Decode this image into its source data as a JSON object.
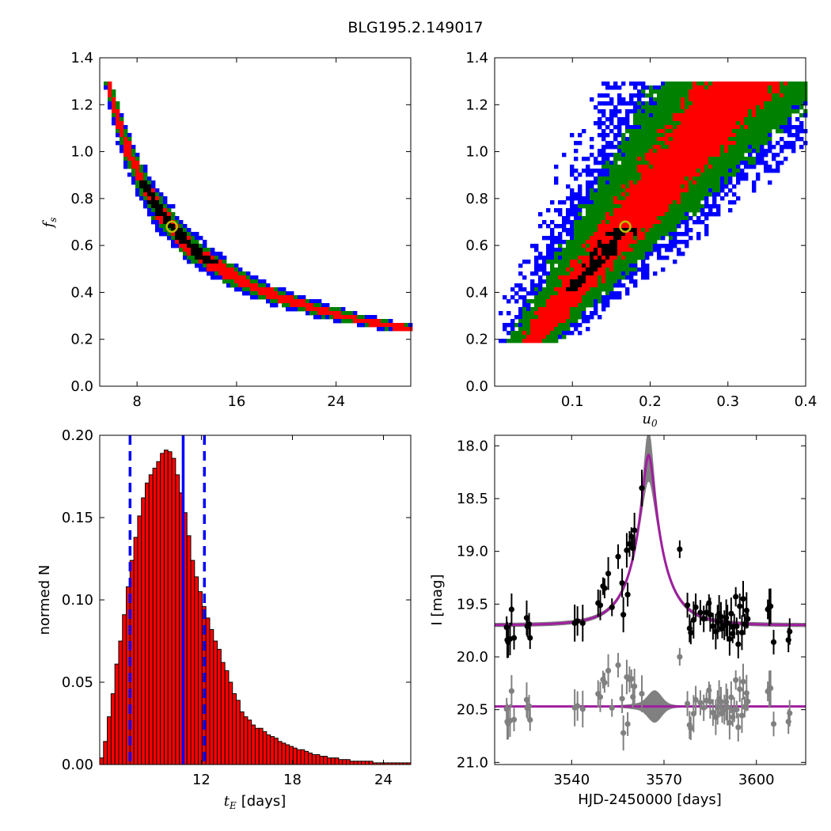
{
  "figure": {
    "title": "BLG195.2.149017"
  },
  "chart_data": [
    {
      "id": "fs_vs_tE",
      "type": "heatmap",
      "title": "",
      "xlabel": "",
      "ylabel": "f_s",
      "ylabel_main": "f",
      "ylabel_sub": "s",
      "xlim": [
        5,
        30
      ],
      "ylim": [
        0,
        1.4
      ],
      "xticks": [
        8,
        16,
        24
      ],
      "yticks": [
        0.0,
        0.2,
        0.4,
        0.6,
        0.8,
        1.0,
        1.2,
        1.4
      ],
      "ytick_labels": [
        "0.0",
        "0.2",
        "0.4",
        "0.6",
        "0.8",
        "1.0",
        "1.2",
        "1.4"
      ],
      "relation": "f_s ≈ 7.35 / t_E (curved band)",
      "confidence_colors": {
        "outer": "#0000ff",
        "middle": "#008000",
        "inner": "#ff0000",
        "core": "#000000"
      },
      "best_fit": {
        "x": 10.8,
        "y": 0.68,
        "marker_color": "#bfbf00"
      }
    },
    {
      "id": "fs_vs_u0",
      "type": "heatmap",
      "title": "",
      "xlabel": "u_0",
      "xlabel_main": "u",
      "xlabel_sub": "0",
      "ylabel": "",
      "xlim": [
        0,
        0.4
      ],
      "ylim": [
        0,
        1.4
      ],
      "xticks": [
        0.1,
        0.2,
        0.3,
        0.4
      ],
      "xtick_labels": [
        "0.1",
        "0.2",
        "0.3",
        "0.4"
      ],
      "yticks": [
        0.0,
        0.2,
        0.4,
        0.6,
        0.8,
        1.0,
        1.2,
        1.4
      ],
      "ytick_labels": [
        "0.0",
        "0.2",
        "0.4",
        "0.6",
        "0.8",
        "1.0",
        "1.2",
        "1.4"
      ],
      "relation": "f_s ≈ 4.1 × u_0 (linear band)",
      "confidence_colors": {
        "outer": "#0000ff",
        "middle": "#008000",
        "inner": "#ff0000",
        "core": "#000000"
      },
      "best_fit": {
        "x": 0.168,
        "y": 0.68,
        "marker_color": "#bfbf00"
      }
    },
    {
      "id": "tE_histogram",
      "type": "bar",
      "title": "",
      "xlabel": "t_E [days]",
      "xlabel_main": "t",
      "xlabel_sub": "E",
      "xlabel_units": "[days]",
      "ylabel": "normed N",
      "xlim": [
        5.3,
        25.8
      ],
      "ylim": [
        0,
        0.2
      ],
      "xticks": [
        12,
        18,
        24
      ],
      "yticks": [
        0.0,
        0.05,
        0.1,
        0.15,
        0.2
      ],
      "ytick_labels": [
        "0.00",
        "0.05",
        "0.10",
        "0.15",
        "0.20"
      ],
      "bar_color": "#ff0000",
      "bin_start": 5.3,
      "bin_width": 0.25,
      "values": [
        0.004,
        0.014,
        0.029,
        0.043,
        0.061,
        0.075,
        0.091,
        0.108,
        0.124,
        0.138,
        0.151,
        0.162,
        0.171,
        0.176,
        0.18,
        0.184,
        0.189,
        0.191,
        0.19,
        0.186,
        0.176,
        0.165,
        0.153,
        0.139,
        0.124,
        0.114,
        0.105,
        0.096,
        0.089,
        0.082,
        0.075,
        0.07,
        0.062,
        0.057,
        0.05,
        0.043,
        0.039,
        0.032,
        0.029,
        0.027,
        0.024,
        0.022,
        0.022,
        0.02,
        0.018,
        0.017,
        0.016,
        0.014,
        0.013,
        0.012,
        0.011,
        0.01,
        0.009,
        0.009,
        0.008,
        0.007,
        0.006,
        0.006,
        0.005,
        0.005,
        0.004,
        0.004,
        0.004,
        0.003,
        0.003,
        0.003,
        0.002,
        0.002,
        0.002,
        0.002,
        0.002,
        0.002,
        0.001,
        0.001,
        0.001,
        0.001,
        0.001,
        0.001,
        0.001,
        0.001,
        0.001,
        0.001
      ],
      "vlines": [
        {
          "x": 7.3,
          "style": "dashed",
          "color": "#0000ff"
        },
        {
          "x": 10.8,
          "style": "solid",
          "color": "#0000ff"
        },
        {
          "x": 12.2,
          "style": "dashed",
          "color": "#0000ff"
        }
      ]
    },
    {
      "id": "lightcurve",
      "type": "scatter",
      "title": "",
      "xlabel": "HJD-2450000 [days]",
      "ylabel": "I [mag]",
      "xlim": [
        3515,
        3616
      ],
      "ylim": [
        21.02,
        17.9
      ],
      "xticks": [
        3540,
        3570,
        3600
      ],
      "yticks": [
        18.0,
        18.5,
        19.0,
        19.5,
        20.0,
        20.5,
        21.0
      ],
      "ytick_labels": [
        "18.0",
        "18.5",
        "19.0",
        "19.5",
        "20.0",
        "20.5",
        "21.0"
      ],
      "model": {
        "t0": 3565.0,
        "tE": 10.8,
        "u0": 0.168,
        "fs": 0.68,
        "baseline": 19.7,
        "color": "#9f1f9f"
      },
      "residual_offset": 20.47,
      "data_color": "#000000",
      "residual_color": "#808080",
      "envelope_color": "#808080",
      "points": [
        [
          3518.9,
          19.72
        ],
        [
          3519.1,
          19.84
        ],
        [
          3519.4,
          19.86
        ],
        [
          3520.0,
          19.83
        ],
        [
          3520.5,
          19.55
        ],
        [
          3521.3,
          19.82
        ],
        [
          3525.4,
          19.63
        ],
        [
          3525.6,
          19.71
        ],
        [
          3526.2,
          19.69
        ],
        [
          3526.5,
          19.82
        ],
        [
          3541.0,
          19.68
        ],
        [
          3541.9,
          19.66
        ],
        [
          3543.6,
          19.68
        ],
        [
          3548.6,
          19.49
        ],
        [
          3549.3,
          19.51
        ],
        [
          3550.2,
          19.33
        ],
        [
          3550.7,
          19.35
        ],
        [
          3551.9,
          19.21
        ],
        [
          3553.1,
          19.53
        ],
        [
          3555.1,
          19.05
        ],
        [
          3556.4,
          19.3
        ],
        [
          3556.8,
          19.6
        ],
        [
          3557.9,
          18.99
        ],
        [
          3558.2,
          19.41
        ],
        [
          3558.8,
          18.93
        ],
        [
          3559.4,
          18.86
        ],
        [
          3559.9,
          18.97
        ],
        [
          3560.4,
          18.8
        ],
        [
          3562.8,
          18.4
        ],
        [
          3575.1,
          18.98
        ],
        [
          3577.6,
          19.51
        ],
        [
          3578.3,
          19.73
        ],
        [
          3578.7,
          19.77
        ],
        [
          3579.6,
          19.65
        ],
        [
          3580.3,
          19.53
        ],
        [
          3581.8,
          19.58
        ],
        [
          3582.9,
          19.64
        ],
        [
          3583.8,
          19.58
        ],
        [
          3584.6,
          19.49
        ],
        [
          3585.0,
          19.6
        ],
        [
          3585.9,
          19.71
        ],
        [
          3586.8,
          19.76
        ],
        [
          3587.4,
          19.67
        ],
        [
          3587.9,
          19.59
        ],
        [
          3588.5,
          19.62
        ],
        [
          3588.9,
          19.73
        ],
        [
          3589.6,
          19.7
        ],
        [
          3590.2,
          19.63
        ],
        [
          3590.6,
          19.68
        ],
        [
          3591.3,
          19.83
        ],
        [
          3591.8,
          19.59
        ],
        [
          3592.3,
          19.78
        ],
        [
          3592.8,
          19.71
        ],
        [
          3593.3,
          19.43
        ],
        [
          3593.6,
          19.71
        ],
        [
          3594.1,
          19.88
        ],
        [
          3594.6,
          19.52
        ],
        [
          3595.3,
          19.77
        ],
        [
          3595.7,
          19.45
        ],
        [
          3596.2,
          19.69
        ],
        [
          3596.8,
          19.56
        ],
        [
          3597.2,
          19.64
        ],
        [
          3603.7,
          19.55
        ],
        [
          3604.2,
          19.53
        ],
        [
          3604.6,
          19.52
        ],
        [
          3605.6,
          19.86
        ],
        [
          3610.4,
          19.84
        ],
        [
          3610.8,
          19.76
        ]
      ]
    }
  ]
}
